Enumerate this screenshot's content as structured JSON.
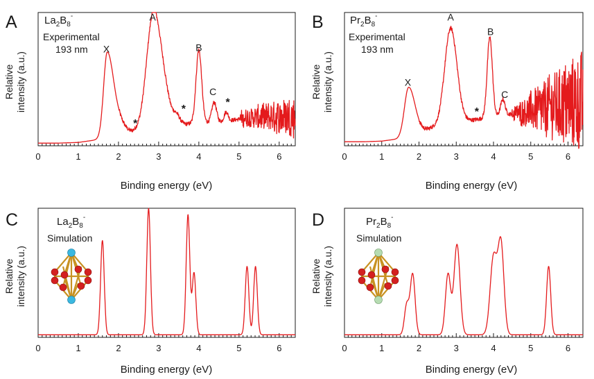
{
  "figure": {
    "background": "#ffffff",
    "line_color": "#e41a1c",
    "axis_color": "#1a1a1a"
  },
  "chart_data": [
    {
      "panel": "A",
      "type": "line",
      "species": {
        "base": "La",
        "sub1": "2",
        "mid": "B",
        "sub2": "8",
        "sup": "-"
      },
      "notes": [
        "Experimental",
        "193 nm"
      ],
      "xlabel": "Binding energy (eV)",
      "ylabel": [
        "Relative",
        "intensity (a.u.)"
      ],
      "xlim": [
        0,
        6.4
      ],
      "ylim": [
        0,
        1
      ],
      "xticks": [
        "0",
        "1",
        "2",
        "3",
        "4",
        "5",
        "6"
      ],
      "noisy_tail_from": 5.0,
      "noise_amplitude": [
        0.05,
        0.16
      ],
      "baseline": [
        [
          0.0,
          0.02
        ],
        [
          0.5,
          0.02
        ],
        [
          1.0,
          0.025
        ],
        [
          1.35,
          0.04
        ],
        [
          2.1,
          0.08
        ],
        [
          2.5,
          0.12
        ],
        [
          3.5,
          0.16
        ],
        [
          4.6,
          0.18
        ],
        [
          5.2,
          0.21
        ],
        [
          6.4,
          0.22
        ]
      ],
      "peaks": [
        {
          "center": 1.72,
          "height": 0.64,
          "width_left": 0.09,
          "width_right": 0.16
        },
        {
          "center": 2.05,
          "height": 0.08,
          "width": 0.13
        },
        {
          "center": 2.85,
          "height": 0.78,
          "width_left": 0.16,
          "width_right": 0.16
        },
        {
          "center": 3.1,
          "height": 0.3,
          "width": 0.16
        },
        {
          "center": 3.45,
          "height": 0.06,
          "width": 0.08
        },
        {
          "center": 4.0,
          "height": 0.55,
          "width": 0.07
        },
        {
          "center": 4.38,
          "height": 0.15,
          "width": 0.06
        },
        {
          "center": 4.68,
          "height": 0.07,
          "width": 0.05
        }
      ],
      "labels": [
        {
          "text": "X",
          "x": 1.7,
          "y": 0.7
        },
        {
          "text": "A",
          "x": 2.85,
          "y": 0.94
        },
        {
          "text": "B",
          "x": 4.0,
          "y": 0.71
        },
        {
          "text": "C",
          "x": 4.35,
          "y": 0.38
        },
        {
          "text": "*",
          "x": 2.42,
          "y": 0.14
        },
        {
          "text": "*",
          "x": 3.62,
          "y": 0.25
        },
        {
          "text": "*",
          "x": 4.72,
          "y": 0.3
        }
      ]
    },
    {
      "panel": "B",
      "type": "line",
      "species": {
        "base": "Pr",
        "sub1": "2",
        "mid": "B",
        "sub2": "8",
        "sup": "-"
      },
      "notes": [
        "Experimental",
        "193 nm"
      ],
      "xlabel": "Binding energy (eV)",
      "ylabel": [
        "Relative",
        "intensity (a.u.)"
      ],
      "xlim": [
        0,
        6.4
      ],
      "ylim": [
        0,
        1
      ],
      "xticks": [
        "0",
        "1",
        "2",
        "3",
        "4",
        "5",
        "6"
      ],
      "noisy_tail_from": 4.5,
      "noise_amplitude": [
        0.05,
        0.4
      ],
      "baseline": [
        [
          0.0,
          0.03
        ],
        [
          0.5,
          0.03
        ],
        [
          1.0,
          0.035
        ],
        [
          1.4,
          0.05
        ],
        [
          2.4,
          0.14
        ],
        [
          3.0,
          0.17
        ],
        [
          3.6,
          0.2
        ],
        [
          4.5,
          0.24
        ],
        [
          5.3,
          0.28
        ],
        [
          6.3,
          0.33
        ]
      ],
      "peaks": [
        {
          "center": 1.72,
          "height": 0.36,
          "width_left": 0.11,
          "width_right": 0.17
        },
        {
          "center": 2.85,
          "height": 0.72,
          "width_left": 0.16,
          "width_right": 0.17
        },
        {
          "center": 3.9,
          "height": 0.6,
          "width": 0.07
        },
        {
          "center": 4.25,
          "height": 0.12,
          "width": 0.06
        }
      ],
      "labels": [
        {
          "text": "X",
          "x": 1.7,
          "y": 0.45
        },
        {
          "text": "A",
          "x": 2.85,
          "y": 0.94
        },
        {
          "text": "B",
          "x": 3.92,
          "y": 0.83
        },
        {
          "text": "C",
          "x": 4.3,
          "y": 0.36
        },
        {
          "text": "*",
          "x": 3.55,
          "y": 0.23
        }
      ]
    },
    {
      "panel": "C",
      "type": "line",
      "species": {
        "base": "La",
        "sub1": "2",
        "mid": "B",
        "sub2": "8",
        "sup": "-"
      },
      "notes": [
        "Simulation"
      ],
      "xlabel": "Binding energy (eV)",
      "ylabel": [
        "Relative",
        "intensity (a.u.)"
      ],
      "xlim": [
        0,
        6.4
      ],
      "ylim": [
        0,
        1
      ],
      "xticks": [
        "0",
        "1",
        "2",
        "3",
        "4",
        "5",
        "6"
      ],
      "baseline": [
        [
          0.0,
          0.02
        ],
        [
          6.4,
          0.02
        ]
      ],
      "peaks": [
        {
          "center": 1.6,
          "height": 0.73,
          "width": 0.045
        },
        {
          "center": 2.75,
          "height": 0.98,
          "width": 0.045
        },
        {
          "center": 3.73,
          "height": 0.93,
          "width": 0.045
        },
        {
          "center": 3.88,
          "height": 0.48,
          "width": 0.045
        },
        {
          "center": 5.2,
          "height": 0.53,
          "width": 0.045
        },
        {
          "center": 5.41,
          "height": 0.53,
          "width": 0.045
        }
      ],
      "labels": []
    },
    {
      "panel": "D",
      "type": "line",
      "species": {
        "base": "Pr",
        "sub1": "2",
        "mid": "B",
        "sub2": "8",
        "sup": "-"
      },
      "notes": [
        "Simulation"
      ],
      "xlabel": "Binding energy (eV)",
      "ylabel": [
        "Relative",
        "intensity (a.u.)"
      ],
      "xlim": [
        0,
        6.4
      ],
      "ylim": [
        0,
        1
      ],
      "xticks": [
        "0",
        "1",
        "2",
        "3",
        "4",
        "5",
        "6"
      ],
      "baseline": [
        [
          0.0,
          0.02
        ],
        [
          6.4,
          0.02
        ]
      ],
      "peaks": [
        {
          "center": 1.67,
          "height": 0.23,
          "width": 0.06
        },
        {
          "center": 1.83,
          "height": 0.47,
          "width": 0.065
        },
        {
          "center": 2.78,
          "height": 0.47,
          "width": 0.07
        },
        {
          "center": 3.02,
          "height": 0.7,
          "width": 0.08
        },
        {
          "center": 4.0,
          "height": 0.6,
          "width": 0.09
        },
        {
          "center": 4.2,
          "height": 0.7,
          "width": 0.08
        },
        {
          "center": 5.48,
          "height": 0.53,
          "width": 0.055
        }
      ],
      "labels": []
    }
  ]
}
